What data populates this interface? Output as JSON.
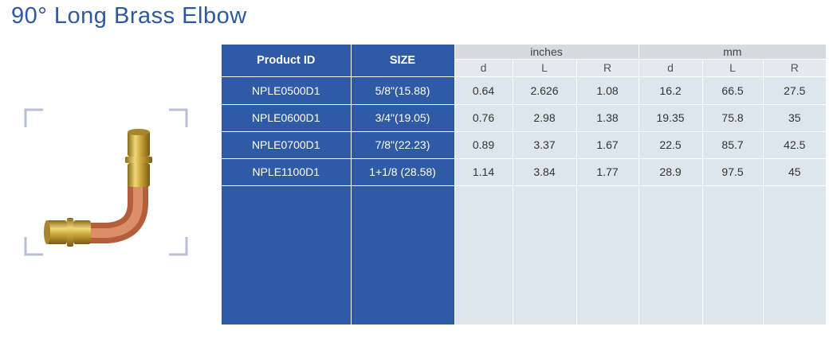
{
  "page": {
    "title": "90° Long Brass Elbow"
  },
  "table": {
    "header": {
      "product_id": "Product ID",
      "size": "SIZE",
      "inches": "inches",
      "mm": "mm",
      "sub": [
        "d",
        "L",
        "R",
        "d",
        "L",
        "R"
      ]
    },
    "rows": [
      {
        "product_id": "NPLE0500D1",
        "size": "5/8\"(15.88)",
        "values": [
          "0.64",
          "2.626",
          "1.08",
          "16.2",
          "66.5",
          "27.5"
        ]
      },
      {
        "product_id": "NPLE0600D1",
        "size": "3/4\"(19.05)",
        "values": [
          "0.76",
          "2.98",
          "1.38",
          "19.35",
          "75.8",
          "35"
        ]
      },
      {
        "product_id": "NPLE0700D1",
        "size": "7/8\"(22.23)",
        "values": [
          "0.89",
          "3.37",
          "1.67",
          "22.5",
          "85.7",
          "42.5"
        ]
      },
      {
        "product_id": "NPLE1100D1",
        "size": "1+1/8 (28.58)",
        "values": [
          "1.14",
          "3.84",
          "1.77",
          "28.9",
          "97.5",
          "45"
        ]
      }
    ]
  },
  "image": {
    "icon": "brass-elbow-fitting-image",
    "colors": {
      "brass": "#c9a33a",
      "copper": "#d47a55",
      "frame": "#b9bed8"
    }
  }
}
